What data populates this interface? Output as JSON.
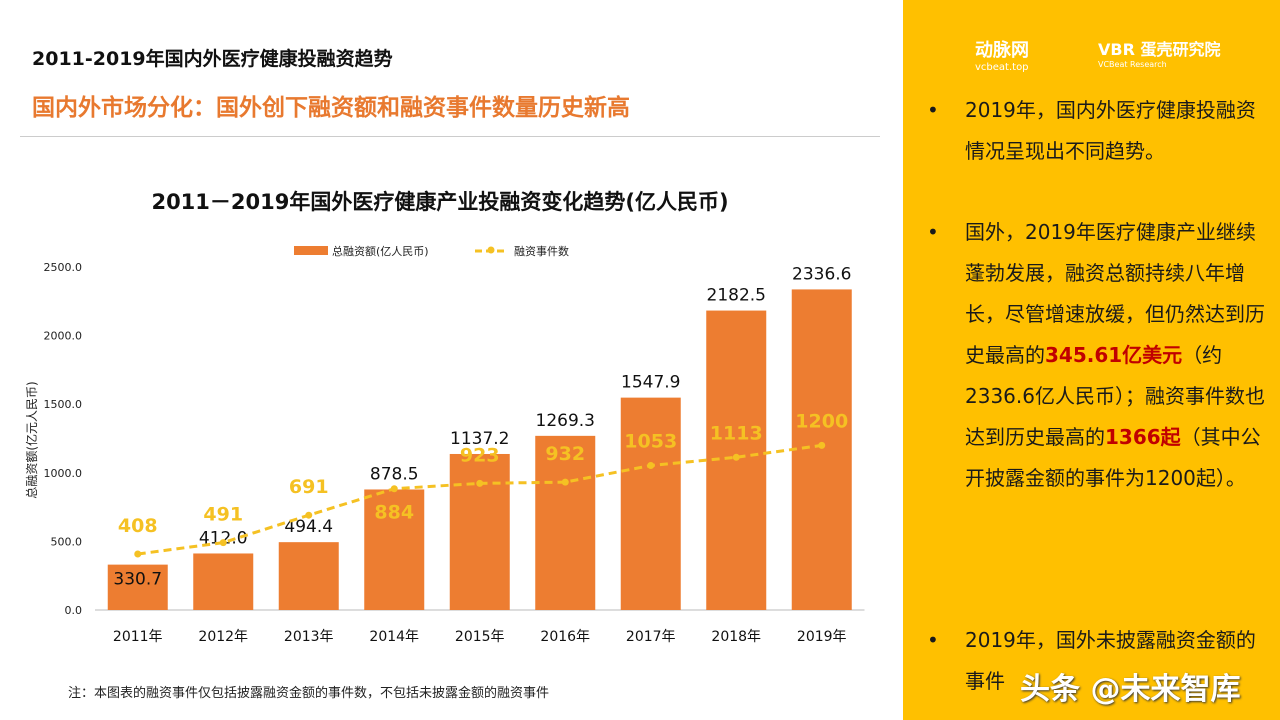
{
  "header": {
    "title": "2011-2019年国内外医疗健康投融资趋势",
    "subtitle": "国内外市场分化：国外创下融资额和融资事件数量历史新高"
  },
  "chart_data": {
    "type": "bar+line",
    "title": "2011－2019年国外医疗健康产业投融资变化趋势(亿人民币)",
    "ylabel": "总融资额(亿元人民币)",
    "ylim": [
      0,
      2500
    ],
    "yticks": [
      "0.0",
      "500.0",
      "1000.0",
      "1500.0",
      "2000.0",
      "2500.0"
    ],
    "categories": [
      "2011年",
      "2012年",
      "2013年",
      "2014年",
      "2015年",
      "2016年",
      "2017年",
      "2018年",
      "2019年"
    ],
    "legend_position": "top",
    "series": [
      {
        "name": "总融资额(亿人民币)",
        "type": "bar",
        "color": "#ED7D31",
        "values": [
          330.7,
          412.0,
          494.4,
          878.5,
          1137.2,
          1269.3,
          1547.9,
          2182.5,
          2336.6
        ],
        "labels": [
          "330.7",
          "412.0",
          "494.4",
          "878.5",
          "1137.2",
          "1269.3",
          "1547.9",
          "2182.5",
          "2336.6"
        ]
      },
      {
        "name": "融资事件数",
        "type": "line",
        "color": "#F5C123",
        "values": [
          408,
          491,
          691,
          884,
          923,
          932,
          1053,
          1113,
          1200
        ],
        "labels": [
          "408",
          "491",
          "691",
          "884",
          "923",
          "932",
          "1053",
          "1113",
          "1200"
        ]
      }
    ],
    "grid": false
  },
  "note": "注：本图表的融资事件仅包括披露融资金额的事件数，不包括未披露金额的融资事件",
  "sidebar": {
    "logo1": "动脉网",
    "logo1_sub": "vcbeat.top",
    "logo2": "VBR 蛋壳研究院",
    "logo2_sub": "VCBeat Research",
    "bullet": "•",
    "b1": "2019年，国内外医疗健康投融资情况呈现出不同趋势。",
    "b2a": "国外，2019年医疗健康产业继续蓬勃发展，融资总额持续八年增长，尽管增速放缓，但仍然达到历史最高的",
    "b2red1": "345.61亿美元",
    "b2b": "（约2336.6亿人民币）；融资事件数也达到历史最高的",
    "b2red2": "1366起",
    "b2c": "（其中公开披露金额的事件为1200起）。",
    "b3": "2019年，国外未披露融资金额的事件",
    "watermark": "头条 @未来智库"
  }
}
